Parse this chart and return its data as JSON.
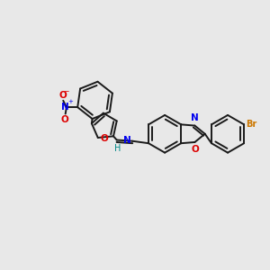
{
  "background_color": "#e8e8e8",
  "bond_color": "#1a1a1a",
  "bond_width": 1.4,
  "figsize": [
    3.0,
    3.0
  ],
  "dpi": 100,
  "atoms": {
    "N_blue": "#0000ee",
    "O_red": "#dd0000",
    "Br_orange": "#cc7700",
    "H_teal": "#008888"
  },
  "xlim": [
    -1.0,
    11.0
  ],
  "ylim": [
    -1.0,
    9.0
  ]
}
